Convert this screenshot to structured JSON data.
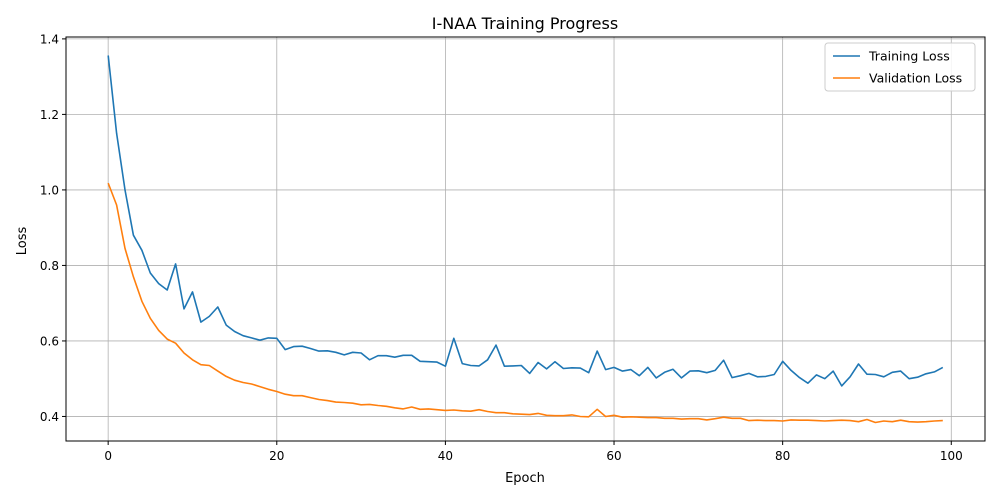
{
  "chart_data": {
    "type": "line",
    "title": "I-NAA Training Progress",
    "xlabel": "Epoch",
    "ylabel": "Loss",
    "xlim": [
      -5,
      104
    ],
    "ylim": [
      0.335,
      1.405
    ],
    "xticks": [
      0,
      20,
      40,
      60,
      80,
      100
    ],
    "yticks": [
      0.4,
      0.6,
      0.8,
      1.0,
      1.2,
      1.4
    ],
    "xtick_labels": [
      "0",
      "20",
      "40",
      "60",
      "80",
      "100"
    ],
    "ytick_labels": [
      "0.4",
      "0.6",
      "0.8",
      "1.0",
      "1.2",
      "1.4"
    ],
    "grid": true,
    "legend_position": "top-right",
    "series": [
      {
        "name": "Training Loss",
        "color": "#1f77b4",
        "x": [
          0,
          1,
          2,
          3,
          4,
          5,
          6,
          7,
          8,
          9,
          10,
          11,
          12,
          13,
          14,
          15,
          16,
          17,
          18,
          19,
          20,
          21,
          22,
          23,
          24,
          25,
          26,
          27,
          28,
          29,
          30,
          31,
          32,
          33,
          34,
          35,
          36,
          37,
          38,
          39,
          40,
          41,
          42,
          43,
          44,
          45,
          46,
          47,
          48,
          49,
          50,
          51,
          52,
          53,
          54,
          55,
          56,
          57,
          58,
          59,
          60,
          61,
          62,
          63,
          64,
          65,
          66,
          67,
          68,
          69,
          70,
          71,
          72,
          73,
          74,
          75,
          76,
          77,
          78,
          79,
          80,
          81,
          82,
          83,
          84,
          85,
          86,
          87,
          88,
          89,
          90,
          91,
          92,
          93,
          94,
          95,
          96,
          97,
          98,
          99
        ],
        "values": [
          1.356,
          1.15,
          1.0,
          0.88,
          0.84,
          0.78,
          0.752,
          0.735,
          0.804,
          0.685,
          0.73,
          0.65,
          0.665,
          0.69,
          0.642,
          0.625,
          0.614,
          0.608,
          0.602,
          0.608,
          0.607,
          0.577,
          0.585,
          0.586,
          0.58,
          0.573,
          0.574,
          0.57,
          0.563,
          0.57,
          0.568,
          0.55,
          0.561,
          0.561,
          0.557,
          0.562,
          0.562,
          0.546,
          0.545,
          0.544,
          0.533,
          0.607,
          0.54,
          0.535,
          0.534,
          0.55,
          0.589,
          0.533,
          0.534,
          0.535,
          0.514,
          0.543,
          0.526,
          0.545,
          0.527,
          0.529,
          0.528,
          0.516,
          0.573,
          0.524,
          0.53,
          0.52,
          0.524,
          0.508,
          0.53,
          0.502,
          0.517,
          0.525,
          0.502,
          0.52,
          0.521,
          0.516,
          0.522,
          0.549,
          0.503,
          0.508,
          0.514,
          0.505,
          0.506,
          0.511,
          0.546,
          0.522,
          0.503,
          0.488,
          0.51,
          0.5,
          0.52,
          0.481,
          0.505,
          0.539,
          0.512,
          0.511,
          0.505,
          0.517,
          0.52,
          0.5,
          0.504,
          0.513,
          0.518,
          0.53
        ]
      },
      {
        "name": "Validation Loss",
        "color": "#ff7f0e",
        "x": [
          0,
          1,
          2,
          3,
          4,
          5,
          6,
          7,
          8,
          9,
          10,
          11,
          12,
          13,
          14,
          15,
          16,
          17,
          18,
          19,
          20,
          21,
          22,
          23,
          24,
          25,
          26,
          27,
          28,
          29,
          30,
          31,
          32,
          33,
          34,
          35,
          36,
          37,
          38,
          39,
          40,
          41,
          42,
          43,
          44,
          45,
          46,
          47,
          48,
          49,
          50,
          51,
          52,
          53,
          54,
          55,
          56,
          57,
          58,
          59,
          60,
          61,
          62,
          63,
          64,
          65,
          66,
          67,
          68,
          69,
          70,
          71,
          72,
          73,
          74,
          75,
          76,
          77,
          78,
          79,
          80,
          81,
          82,
          83,
          84,
          85,
          86,
          87,
          88,
          89,
          90,
          91,
          92,
          93,
          94,
          95,
          96,
          97,
          98,
          99
        ],
        "values": [
          1.018,
          0.96,
          0.845,
          0.77,
          0.705,
          0.66,
          0.628,
          0.605,
          0.594,
          0.568,
          0.55,
          0.537,
          0.535,
          0.52,
          0.506,
          0.496,
          0.49,
          0.486,
          0.479,
          0.472,
          0.466,
          0.459,
          0.455,
          0.455,
          0.45,
          0.445,
          0.442,
          0.438,
          0.437,
          0.435,
          0.431,
          0.432,
          0.429,
          0.427,
          0.423,
          0.42,
          0.425,
          0.419,
          0.42,
          0.418,
          0.416,
          0.417,
          0.415,
          0.414,
          0.418,
          0.413,
          0.41,
          0.41,
          0.407,
          0.406,
          0.405,
          0.408,
          0.403,
          0.402,
          0.402,
          0.404,
          0.4,
          0.399,
          0.419,
          0.4,
          0.403,
          0.398,
          0.399,
          0.398,
          0.397,
          0.397,
          0.395,
          0.395,
          0.393,
          0.394,
          0.394,
          0.391,
          0.394,
          0.398,
          0.395,
          0.395,
          0.389,
          0.39,
          0.389,
          0.389,
          0.388,
          0.391,
          0.39,
          0.39,
          0.389,
          0.388,
          0.389,
          0.39,
          0.389,
          0.386,
          0.392,
          0.384,
          0.388,
          0.386,
          0.39,
          0.386,
          0.385,
          0.386,
          0.388,
          0.389
        ]
      }
    ]
  }
}
